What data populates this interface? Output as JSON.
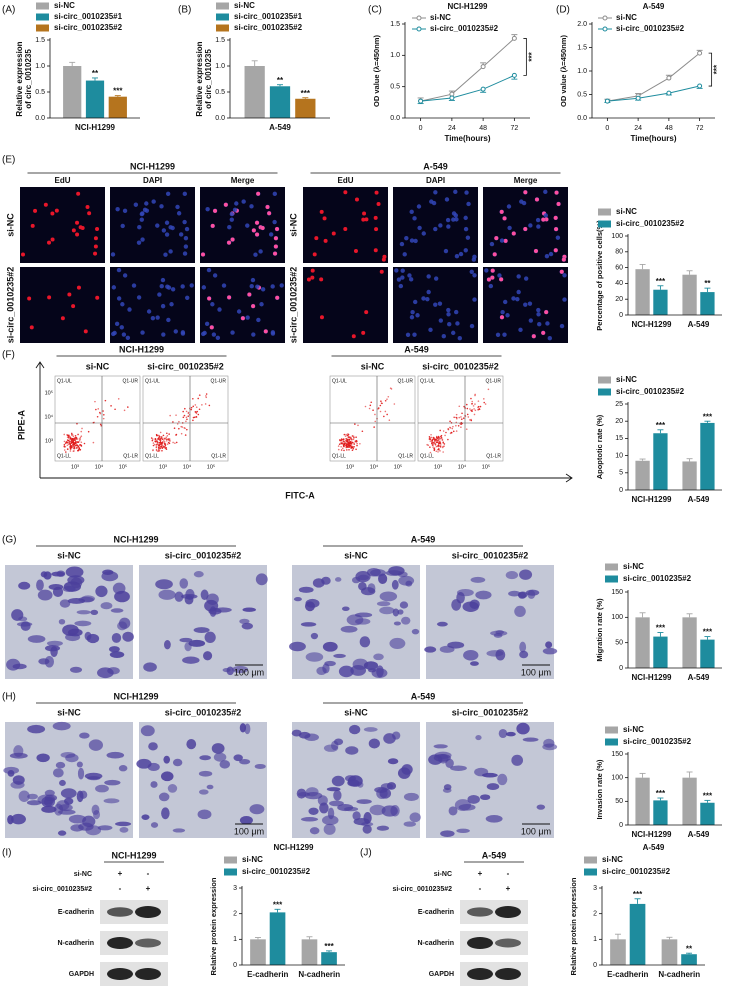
{
  "panel_labels": [
    "(A)",
    "(B)",
    "(C)",
    "(D)",
    "(E)",
    "(F)",
    "(G)",
    "(H)",
    "(I)",
    "(J)"
  ],
  "chart_data": [
    {
      "type": "bar",
      "categories": [
        "NCI-H1299"
      ],
      "series": [
        {
          "name": "si-NC",
          "color": "#a6a6a6",
          "values": [
            1.0
          ],
          "errors": [
            0.07
          ]
        },
        {
          "name": "si-circ_0010235#1",
          "color": "#1e8c9e",
          "values": [
            0.72
          ],
          "errors": [
            0.05
          ],
          "significance": [
            "**"
          ]
        },
        {
          "name": "si-circ_0010235#2",
          "color": "#b5741e",
          "values": [
            0.41
          ],
          "errors": [
            0.02
          ],
          "significance": [
            "***"
          ]
        }
      ],
      "ylim": [
        0,
        1.5
      ],
      "yticks": [
        {
          "value": 0,
          "label": "0.0"
        },
        {
          "value": 0.5,
          "label": "0.5"
        },
        {
          "value": 1,
          "label": "1.0"
        },
        {
          "value": 1.5,
          "label": "1.5"
        }
      ],
      "y_label": [
        "Relative expression",
        "of circ_0010235"
      ]
    },
    {
      "type": "bar",
      "categories": [
        "A-549"
      ],
      "series": [
        {
          "name": "si-NC",
          "color": "#a6a6a6",
          "values": [
            1.0
          ],
          "errors": [
            0.1
          ]
        },
        {
          "name": "si-circ_0010235#1",
          "color": "#1e8c9e",
          "values": [
            0.61
          ],
          "errors": [
            0.03
          ],
          "significance": [
            "**"
          ]
        },
        {
          "name": "si-circ_0010235#2",
          "color": "#b5741e",
          "values": [
            0.37
          ],
          "errors": [
            0.02
          ],
          "significance": [
            "***"
          ]
        }
      ],
      "ylim": [
        0,
        1.5
      ],
      "yticks": [
        {
          "value": 0,
          "label": "0.0"
        },
        {
          "value": 0.5,
          "label": "0.5"
        },
        {
          "value": 1,
          "label": "1.0"
        },
        {
          "value": 1.5,
          "label": "1.5"
        }
      ],
      "y_label": [
        "Relative expression",
        "of circ_0010235"
      ]
    },
    {
      "type": "line",
      "title": "NCI-H1299",
      "x": [
        0,
        24,
        48,
        72
      ],
      "xlim": [
        -12,
        84
      ],
      "xticks": [
        0,
        24,
        48,
        72
      ],
      "series": [
        {
          "name": "si-NC",
          "color": "#8c8c8c",
          "values": [
            0.27,
            0.38,
            0.82,
            1.27
          ],
          "errors": [
            0.05,
            0.05,
            0.06,
            0.06
          ]
        },
        {
          "name": "si-circ_0010235#2",
          "color": "#1e8c9e",
          "values": [
            0.27,
            0.32,
            0.46,
            0.68
          ],
          "errors": [
            0.04,
            0.04,
            0.05,
            0.06
          ]
        }
      ],
      "ylim": [
        0,
        1.5
      ],
      "yticks": [
        {
          "value": 0,
          "label": "0.0"
        },
        {
          "value": 0.5,
          "label": "0.5"
        },
        {
          "value": 1,
          "label": "1.0"
        },
        {
          "value": 1.5,
          "label": "1.5"
        }
      ],
      "annotation": "***",
      "x_label": "Time(hours)",
      "y_label": "OD value (λ=450nm)"
    },
    {
      "type": "line",
      "title": "A-549",
      "x": [
        0,
        24,
        48,
        72
      ],
      "xlim": [
        -12,
        84
      ],
      "xticks": [
        0,
        24,
        48,
        72
      ],
      "series": [
        {
          "name": "si-NC",
          "color": "#8c8c8c",
          "values": [
            0.36,
            0.47,
            0.85,
            1.38
          ],
          "errors": [
            0.04,
            0.05,
            0.06,
            0.06
          ]
        },
        {
          "name": "si-circ_0010235#2",
          "color": "#1e8c9e",
          "values": [
            0.36,
            0.42,
            0.53,
            0.68
          ],
          "errors": [
            0.03,
            0.04,
            0.04,
            0.05
          ]
        }
      ],
      "ylim": [
        0,
        2
      ],
      "yticks": [
        {
          "value": 0,
          "label": "0.0"
        },
        {
          "value": 0.5,
          "label": "0.5"
        },
        {
          "value": 1,
          "label": "1.0"
        },
        {
          "value": 1.5,
          "label": "1.5"
        },
        {
          "value": 2,
          "label": "2.0"
        }
      ],
      "annotation": "***",
      "x_label": "Time(hours)",
      "y_label": "OD value (λ=450nm)"
    },
    {
      "type": "bar",
      "categories": [
        "NCI-H1299",
        "A-549"
      ],
      "series": [
        {
          "name": "si-NC",
          "color": "#a6a6a6",
          "values": [
            58,
            51
          ],
          "errors": [
            6,
            5
          ]
        },
        {
          "name": "si-circ_0010235#2",
          "color": "#1e8c9e",
          "values": [
            32,
            29
          ],
          "errors": [
            5,
            5
          ],
          "significance": [
            "***",
            "**"
          ]
        }
      ],
      "ylim": [
        0,
        100
      ],
      "yticks": [
        0,
        20,
        40,
        60,
        80,
        100
      ],
      "y_label": "Percentage of positive cells(%)"
    },
    {
      "type": "bar",
      "categories": [
        "NCI-H1299",
        "A-549"
      ],
      "series": [
        {
          "name": "si-NC",
          "color": "#a6a6a6",
          "values": [
            8.5,
            8.3
          ],
          "errors": [
            0.5,
            0.8
          ]
        },
        {
          "name": "si-circ_0010235#2",
          "color": "#1e8c9e",
          "values": [
            16.5,
            19.5
          ],
          "errors": [
            1.0,
            0.5
          ],
          "significance": [
            "***",
            "***"
          ]
        }
      ],
      "ylim": [
        0,
        25
      ],
      "yticks": [
        0,
        5,
        10,
        15,
        20,
        25
      ],
      "y_label": "Apoptotic rate (%)"
    },
    {
      "type": "bar",
      "categories": [
        "NCI-H1299",
        "A-549"
      ],
      "series": [
        {
          "name": "si-NC",
          "color": "#a6a6a6",
          "values": [
            100,
            100
          ],
          "errors": [
            9,
            7
          ]
        },
        {
          "name": "si-circ_0010235#2",
          "color": "#1e8c9e",
          "values": [
            62,
            56
          ],
          "errors": [
            8,
            6
          ],
          "significance": [
            "***",
            "***"
          ]
        }
      ],
      "ylim": [
        0,
        150
      ],
      "yticks": [
        0,
        50,
        100,
        150
      ],
      "y_label": "Migration rate (%)"
    },
    {
      "type": "bar",
      "categories": [
        "NCI-H1299",
        "A-549"
      ],
      "series": [
        {
          "name": "si-NC",
          "color": "#a6a6a6",
          "values": [
            100,
            100
          ],
          "errors": [
            9,
            12
          ]
        },
        {
          "name": "si-circ_0010235#2",
          "color": "#1e8c9e",
          "values": [
            52,
            47
          ],
          "errors": [
            5,
            5
          ],
          "significance": [
            "***",
            "***"
          ]
        }
      ],
      "ylim": [
        0,
        150
      ],
      "yticks": [
        0,
        50,
        100,
        150
      ],
      "y_label": "Invasion rate (%)"
    },
    {
      "type": "bar",
      "title": "NCI-H1299",
      "categories": [
        "E-cadherin",
        "N-cadherin"
      ],
      "series": [
        {
          "name": "si-NC",
          "color": "#a6a6a6",
          "values": [
            1.0,
            1.0
          ],
          "errors": [
            0.07,
            0.1
          ]
        },
        {
          "name": "si-circ_0010235#2",
          "color": "#1e8c9e",
          "values": [
            2.05,
            0.5
          ],
          "errors": [
            0.12,
            0.05
          ],
          "significance": [
            "***",
            "***"
          ]
        }
      ],
      "ylim": [
        0,
        3
      ],
      "yticks": [
        0,
        1,
        2,
        3
      ],
      "y_label": "Relative protein expression"
    },
    {
      "type": "bar",
      "title": "A-549",
      "categories": [
        "E-cadherin",
        "N-cadherin"
      ],
      "series": [
        {
          "name": "si-NC",
          "color": "#a6a6a6",
          "values": [
            1.0,
            1.0
          ],
          "errors": [
            0.2,
            0.08
          ]
        },
        {
          "name": "si-circ_0010235#2",
          "color": "#1e8c9e",
          "values": [
            2.38,
            0.42
          ],
          "errors": [
            0.2,
            0.04
          ],
          "significance": [
            "***",
            "**"
          ]
        }
      ],
      "ylim": [
        0,
        3
      ],
      "yticks": [
        0,
        1,
        2,
        3
      ],
      "y_label": "Relative protein expression"
    }
  ],
  "edu_panel": {
    "groups": [
      "NCI-H1299",
      "A-549"
    ],
    "columns": [
      "EdU",
      "DAPI",
      "Merge"
    ],
    "rows": [
      "si-NC",
      "si-circ_0010235#2"
    ]
  },
  "flow_panel": {
    "groups": [
      "NCI-H1299",
      "A-549"
    ],
    "conditions": [
      "si-NC",
      "si-circ_0010235#2"
    ],
    "y_label": "PIPE-A",
    "x_label": "FITC-A",
    "quadrants": [
      "Q1-UL",
      "Q1-UR",
      "Q1-LL",
      "Q1-LR"
    ],
    "ticks": [
      "10³",
      "10⁴",
      "10⁵"
    ]
  },
  "migration_panel": {
    "groups": [
      "NCI-H1299",
      "A-549"
    ],
    "conditions": [
      "si-NC",
      "si-circ_0010235#2"
    ],
    "scale_bar": "100 μm"
  },
  "invasion_panel": {
    "groups": [
      "NCI-H1299",
      "A-549"
    ],
    "conditions": [
      "si-NC",
      "si-circ_0010235#2"
    ],
    "scale_bar": "100 μm"
  },
  "blot_panels": [
    {
      "header": "NCI-H1299",
      "rows": [
        "si-NC",
        "si-circ_0010235#2"
      ],
      "signs": [
        [
          "+",
          "-"
        ],
        [
          "-",
          "+"
        ]
      ],
      "proteins": [
        "E-cadherin",
        "N-cadherin",
        "GAPDH"
      ]
    },
    {
      "header": "A-549",
      "rows": [
        "si-NC",
        "si-circ_0010235#2"
      ],
      "signs": [
        [
          "+",
          "-"
        ],
        [
          "-",
          "+"
        ]
      ],
      "proteins": [
        "E-cadherin",
        "N-cadherin",
        "GAPDH"
      ]
    }
  ]
}
